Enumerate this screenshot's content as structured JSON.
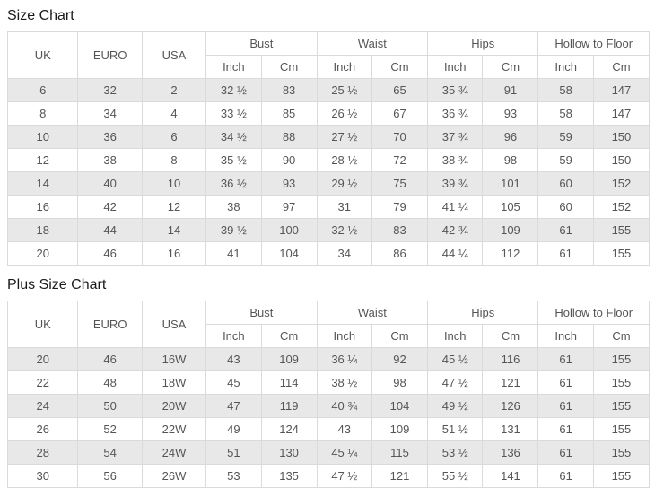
{
  "colors": {
    "stripe": "#e8e8e8",
    "border": "#dadada",
    "text": "#555555",
    "title": "#1a1a1a",
    "background": "#ffffff"
  },
  "size_chart": {
    "title": "Size Chart",
    "simple_columns": [
      "UK",
      "EURO",
      "USA"
    ],
    "groups": [
      "Bust",
      "Waist",
      "Hips",
      "Hollow to Floor"
    ],
    "subheaders": [
      "Inch",
      "Cm"
    ],
    "rows": [
      [
        "6",
        "32",
        "2",
        "32 ½",
        "83",
        "25 ½",
        "65",
        "35 ¾",
        "91",
        "58",
        "147"
      ],
      [
        "8",
        "34",
        "4",
        "33 ½",
        "85",
        "26 ½",
        "67",
        "36 ¾",
        "93",
        "58",
        "147"
      ],
      [
        "10",
        "36",
        "6",
        "34 ½",
        "88",
        "27 ½",
        "70",
        "37 ¾",
        "96",
        "59",
        "150"
      ],
      [
        "12",
        "38",
        "8",
        "35 ½",
        "90",
        "28 ½",
        "72",
        "38 ¾",
        "98",
        "59",
        "150"
      ],
      [
        "14",
        "40",
        "10",
        "36 ½",
        "93",
        "29 ½",
        "75",
        "39 ¾",
        "101",
        "60",
        "152"
      ],
      [
        "16",
        "42",
        "12",
        "38",
        "97",
        "31",
        "79",
        "41 ¼",
        "105",
        "60",
        "152"
      ],
      [
        "18",
        "44",
        "14",
        "39 ½",
        "100",
        "32 ½",
        "83",
        "42 ¾",
        "109",
        "61",
        "155"
      ],
      [
        "20",
        "46",
        "16",
        "41",
        "104",
        "34",
        "86",
        "44 ¼",
        "112",
        "61",
        "155"
      ]
    ]
  },
  "plus_size_chart": {
    "title": "Plus Size Chart",
    "simple_columns": [
      "UK",
      "EURO",
      "USA"
    ],
    "groups": [
      "Bust",
      "Waist",
      "Hips",
      "Hollow to Floor"
    ],
    "subheaders": [
      "Inch",
      "Cm"
    ],
    "rows": [
      [
        "20",
        "46",
        "16W",
        "43",
        "109",
        "36 ¼",
        "92",
        "45 ½",
        "116",
        "61",
        "155"
      ],
      [
        "22",
        "48",
        "18W",
        "45",
        "114",
        "38 ½",
        "98",
        "47 ½",
        "121",
        "61",
        "155"
      ],
      [
        "24",
        "50",
        "20W",
        "47",
        "119",
        "40 ¾",
        "104",
        "49 ½",
        "126",
        "61",
        "155"
      ],
      [
        "26",
        "52",
        "22W",
        "49",
        "124",
        "43",
        "109",
        "51 ½",
        "131",
        "61",
        "155"
      ],
      [
        "28",
        "54",
        "24W",
        "51",
        "130",
        "45 ¼",
        "115",
        "53 ½",
        "136",
        "61",
        "155"
      ],
      [
        "30",
        "56",
        "26W",
        "53",
        "135",
        "47 ½",
        "121",
        "55 ½",
        "141",
        "61",
        "155"
      ]
    ]
  }
}
